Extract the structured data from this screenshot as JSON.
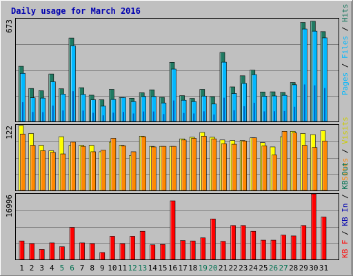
{
  "title": "Daily usage for March 2016",
  "colors": {
    "frame_bg": "#c0c0c0",
    "title": "#0000b0",
    "weekday_label": "#000000",
    "weekend_label": "#007050",
    "hits": "#1f7a62",
    "files": "#00b8ff",
    "pages": "#00b8ff",
    "visits": "#ffff00",
    "sites": "#ff8800",
    "kb": "#ff0000",
    "legend_sep": "#000000"
  },
  "chart_data": [
    {
      "type": "bar",
      "panel": "hits_files_pages",
      "y_max_label": "673",
      "ylim": [
        0,
        673
      ],
      "categories": [
        "1",
        "2",
        "3",
        "4",
        "5",
        "6",
        "7",
        "8",
        "9",
        "10",
        "11",
        "12",
        "13",
        "14",
        "15",
        "16",
        "17",
        "18",
        "19",
        "20",
        "21",
        "22",
        "23",
        "24",
        "25",
        "26",
        "27",
        "28",
        "29",
        "30",
        "31"
      ],
      "weekend_days": [
        "5",
        "6",
        "12",
        "13",
        "19",
        "20",
        "26",
        "27"
      ],
      "legend": [
        "Pages",
        "Files",
        "Hits"
      ],
      "series": [
        {
          "name": "Hits",
          "values": [
            361,
            216,
            201,
            311,
            214,
            546,
            221,
            172,
            142,
            210,
            157,
            152,
            188,
            207,
            158,
            387,
            169,
            151,
            210,
            162,
            452,
            226,
            299,
            336,
            193,
            194,
            190,
            255,
            648,
            656,
            588
          ]
        },
        {
          "name": "Files",
          "values": [
            315,
            155,
            153,
            260,
            179,
            495,
            177,
            142,
            100,
            144,
            156,
            130,
            163,
            163,
            121,
            343,
            139,
            130,
            166,
            114,
            388,
            183,
            249,
            306,
            165,
            167,
            171,
            240,
            605,
            591,
            547
          ]
        },
        {
          "name": "Pages",
          "values": [
            0,
            0,
            0,
            0,
            0,
            0,
            0,
            0,
            0,
            0,
            0,
            0,
            0,
            0,
            0,
            0,
            0,
            0,
            0,
            0,
            0,
            0,
            0,
            0,
            0,
            0,
            0,
            0,
            0,
            0,
            0
          ]
        }
      ]
    },
    {
      "type": "bar",
      "panel": "visits_sites",
      "y_max_label": "122",
      "ylim": [
        0,
        122
      ],
      "categories": [
        "1",
        "2",
        "3",
        "4",
        "5",
        "6",
        "7",
        "8",
        "9",
        "10",
        "11",
        "12",
        "13",
        "14",
        "15",
        "16",
        "17",
        "18",
        "19",
        "20",
        "21",
        "22",
        "23",
        "24",
        "25",
        "26",
        "27",
        "28",
        "29",
        "30",
        "31"
      ],
      "legend": [
        "Sites",
        "Visits"
      ],
      "series": [
        {
          "name": "Visits",
          "values": [
            121,
            106,
            84,
            74,
            100,
            84,
            84,
            84,
            72,
            90,
            84,
            65,
            101,
            82,
            82,
            82,
            96,
            99,
            108,
            99,
            94,
            93,
            93,
            98,
            89,
            81,
            100,
            110,
            106,
            104,
            111
          ]
        },
        {
          "name": "Sites",
          "values": [
            105,
            84,
            74,
            71,
            68,
            90,
            82,
            72,
            75,
            97,
            83,
            72,
            100,
            81,
            82,
            82,
            94,
            97,
            101,
            96,
            87,
            86,
            92,
            98,
            83,
            66,
            110,
            107,
            84,
            80,
            92
          ]
        }
      ]
    },
    {
      "type": "bar",
      "panel": "kbytes",
      "y_max_label": "16996",
      "ylim": [
        0,
        16996
      ],
      "categories": [
        "1",
        "2",
        "3",
        "4",
        "5",
        "6",
        "7",
        "8",
        "9",
        "10",
        "11",
        "12",
        "13",
        "14",
        "15",
        "16",
        "17",
        "18",
        "19",
        "20",
        "21",
        "22",
        "23",
        "24",
        "25",
        "26",
        "27",
        "28",
        "29",
        "30",
        "31"
      ],
      "legend": [
        "KB F",
        "KB In",
        "KB Out"
      ],
      "series": [
        {
          "name": "KB F",
          "values": [
            4800,
            4100,
            2600,
            4300,
            3300,
            8300,
            4300,
            4100,
            1800,
            6000,
            4100,
            6000,
            7300,
            3800,
            3900,
            15200,
            4900,
            4800,
            5600,
            10500,
            4700,
            8800,
            8800,
            7300,
            5000,
            5000,
            6300,
            6100,
            8800,
            17000,
            11000
          ]
        }
      ]
    }
  ]
}
